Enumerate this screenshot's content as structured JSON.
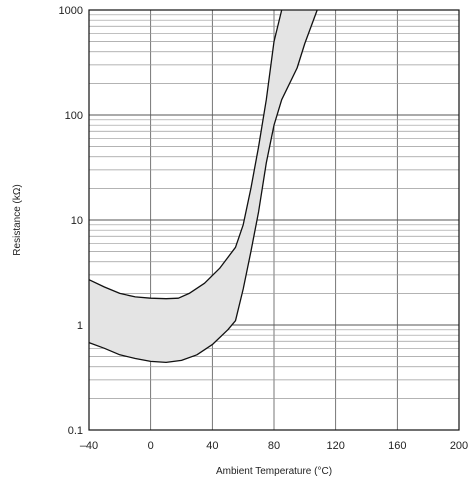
{
  "chart_data": {
    "type": "area",
    "title": "",
    "xlabel": "Ambient Temperature (°C)",
    "ylabel": "Resistance (kΩ)",
    "xlim": [
      -40,
      200
    ],
    "ylim": [
      0.1,
      1000
    ],
    "yscale": "log",
    "grid": true,
    "x_ticks": [
      -40,
      0,
      40,
      80,
      120,
      160,
      200
    ],
    "x_tick_labels": [
      "–40",
      "0",
      "40",
      "80",
      "120",
      "160",
      "200"
    ],
    "y_ticks": [
      0.1,
      1,
      10,
      100,
      1000
    ],
    "y_tick_labels": [
      "0.1",
      "1",
      "10",
      "100",
      "1000"
    ],
    "band_color": "#e4e4e4",
    "line_color": "#111111",
    "series": [
      {
        "values": [
          {
            "x": -40,
            "y": 2.7
          },
          {
            "x": -30,
            "y": 2.3
          },
          {
            "x": -20,
            "y": 2.0
          },
          {
            "x": -10,
            "y": 1.85
          },
          {
            "x": 0,
            "y": 1.8
          },
          {
            "x": 10,
            "y": 1.78
          },
          {
            "x": 18,
            "y": 1.8
          },
          {
            "x": 25,
            "y": 2.0
          },
          {
            "x": 35,
            "y": 2.5
          },
          {
            "x": 45,
            "y": 3.5
          },
          {
            "x": 55,
            "y": 5.5
          },
          {
            "x": 60,
            "y": 9
          },
          {
            "x": 65,
            "y": 20
          },
          {
            "x": 70,
            "y": 50
          },
          {
            "x": 75,
            "y": 140
          },
          {
            "x": 80,
            "y": 500
          },
          {
            "x": 85,
            "y": 1000
          }
        ]
      },
      {
        "values": [
          {
            "x": -40,
            "y": 0.68
          },
          {
            "x": -30,
            "y": 0.6
          },
          {
            "x": -20,
            "y": 0.52
          },
          {
            "x": -10,
            "y": 0.48
          },
          {
            "x": 0,
            "y": 0.45
          },
          {
            "x": 10,
            "y": 0.44
          },
          {
            "x": 20,
            "y": 0.46
          },
          {
            "x": 30,
            "y": 0.52
          },
          {
            "x": 40,
            "y": 0.65
          },
          {
            "x": 50,
            "y": 0.9
          },
          {
            "x": 55,
            "y": 1.1
          },
          {
            "x": 60,
            "y": 2.2
          },
          {
            "x": 65,
            "y": 5
          },
          {
            "x": 70,
            "y": 12
          },
          {
            "x": 75,
            "y": 35
          },
          {
            "x": 80,
            "y": 80
          },
          {
            "x": 85,
            "y": 140
          },
          {
            "x": 95,
            "y": 280
          },
          {
            "x": 100,
            "y": 480
          },
          {
            "x": 108,
            "y": 1000
          }
        ]
      }
    ]
  }
}
